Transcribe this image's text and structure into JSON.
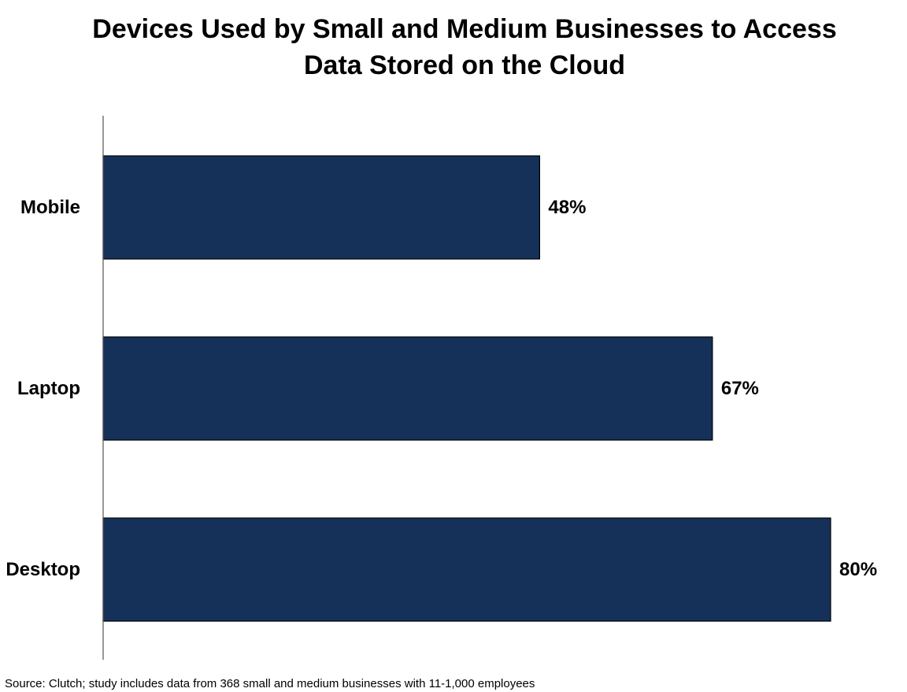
{
  "chart_data": {
    "type": "bar",
    "orientation": "horizontal",
    "title": "Devices Used by Small and Medium Businesses to Access\nData Stored on the Cloud",
    "categories": [
      "Mobile",
      "Laptop",
      "Desktop"
    ],
    "values": [
      48,
      67,
      80
    ],
    "value_labels": [
      "48%",
      "67%",
      "80%"
    ],
    "unit": "%",
    "xlim": [
      0,
      80
    ],
    "grid": false,
    "legend": "none",
    "bar_color": "#15315a",
    "source": "Source: Clutch; study includes data from 368 small and medium businesses with 11-1,000 employees"
  }
}
